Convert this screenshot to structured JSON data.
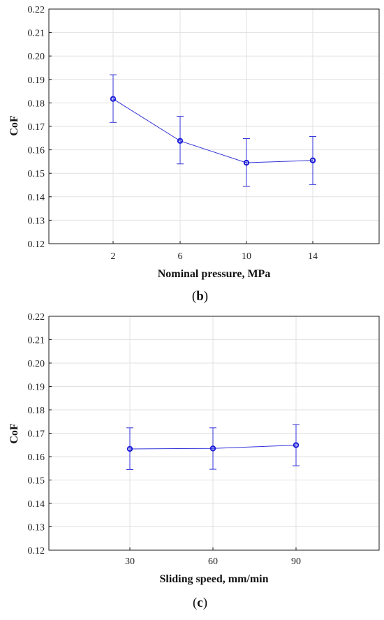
{
  "chart_data": [
    {
      "type": "line",
      "panel_label": "b",
      "xlabel": "Nominal pressure, MPa",
      "ylabel": "CoF",
      "categories": [
        "2",
        "6",
        "10",
        "14"
      ],
      "series": [
        {
          "values": [
            0.1817,
            0.1638,
            0.1545,
            0.1555
          ],
          "error_upper": [
            0.192,
            0.1743,
            0.1648,
            0.1657
          ],
          "error_lower": [
            0.1717,
            0.154,
            0.1444,
            0.1452
          ]
        }
      ],
      "ylim": [
        0.12,
        0.22
      ],
      "yticks": [
        "0.12",
        "0.13",
        "0.14",
        "0.15",
        "0.16",
        "0.17",
        "0.18",
        "0.19",
        "0.20",
        "0.21",
        "0.22"
      ],
      "grid": true,
      "color": "#3232d8"
    },
    {
      "type": "line",
      "panel_label": "c",
      "xlabel": "Sliding speed, mm/min",
      "ylabel": "CoF",
      "categories": [
        "30",
        "60",
        "90"
      ],
      "series": [
        {
          "values": [
            0.1633,
            0.1635,
            0.1649
          ],
          "error_upper": [
            0.1723,
            0.1723,
            0.1737
          ],
          "error_lower": [
            0.1545,
            0.1546,
            0.1561
          ]
        }
      ],
      "ylim": [
        0.12,
        0.22
      ],
      "yticks": [
        "0.12",
        "0.13",
        "0.14",
        "0.15",
        "0.16",
        "0.17",
        "0.18",
        "0.19",
        "0.20",
        "0.21",
        "0.22"
      ],
      "grid": true,
      "color": "#3232d8"
    }
  ]
}
